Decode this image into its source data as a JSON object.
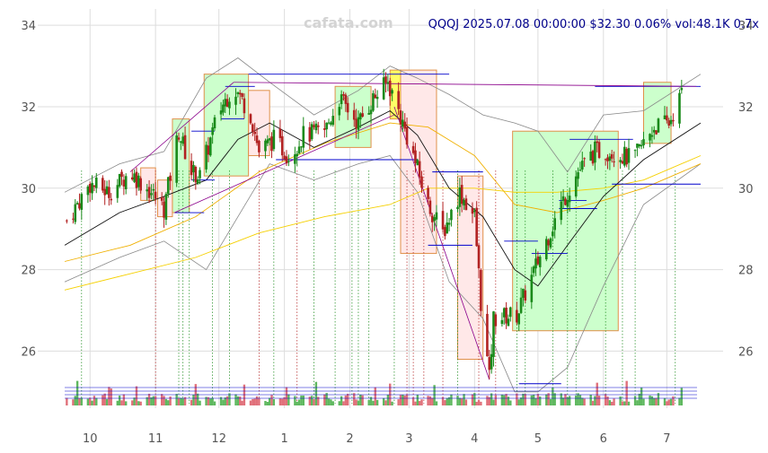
{
  "watermark": "cafata.com",
  "header": "QQQJ 2025.07.08 00:00:00 $32.30 0.06% vol:48.1K 0.7x",
  "colors": {
    "up": "#1a8a1a",
    "down": "#b22222",
    "ma_short": "#111111",
    "ma_mid": "#f0b000",
    "ma_long": "#f5d000",
    "band": "#888888",
    "green_box": "#ccffcc",
    "red_box": "#ffe8e8",
    "box_border": "#e0904a",
    "vol_up": "#5fb85f",
    "vol_down": "#e0707a",
    "level": "#0000cc",
    "trend": "#8b008b",
    "grid": "#dddddd"
  },
  "chart_data": {
    "type": "candlestick",
    "title": "QQQJ 2025.07.08 00:00:00 $32.30 0.06% vol:48.1K 0.7x",
    "x_ticks": [
      "10",
      "11",
      "12",
      "1",
      "2",
      "3",
      "4",
      "5",
      "6",
      "7"
    ],
    "y_ticks": [
      26,
      28,
      30,
      32,
      34
    ],
    "ylim": [
      24.6,
      34.4
    ],
    "x_range": [
      "2024-09-19",
      "2025-07-17"
    ],
    "grid": true,
    "anchors": [
      [
        "2024-09-20",
        29.2
      ],
      [
        "2024-10-01",
        30.1
      ],
      [
        "2024-10-10",
        29.9
      ],
      [
        "2024-10-20",
        30.4
      ],
      [
        "2024-10-30",
        29.9
      ],
      [
        "2024-11-05",
        29.5
      ],
      [
        "2024-11-12",
        31.4
      ],
      [
        "2024-11-18",
        30.4
      ],
      [
        "2024-11-22",
        30.3
      ],
      [
        "2024-12-01",
        31.9
      ],
      [
        "2024-12-08",
        32.5
      ],
      [
        "2024-12-16",
        31.8
      ],
      [
        "2024-12-20",
        30.9
      ],
      [
        "2024-12-27",
        31.2
      ],
      [
        "2025-01-03",
        30.8
      ],
      [
        "2025-01-10",
        31.3
      ],
      [
        "2025-01-20",
        31.4
      ],
      [
        "2025-01-27",
        32.2
      ],
      [
        "2025-02-05",
        31.6
      ],
      [
        "2025-02-12",
        32.2
      ],
      [
        "2025-02-19",
        32.6
      ],
      [
        "2025-02-24",
        31.9
      ],
      [
        "2025-03-03",
        30.8
      ],
      [
        "2025-03-10",
        29.6
      ],
      [
        "2025-03-17",
        28.9
      ],
      [
        "2025-03-25",
        29.9
      ],
      [
        "2025-04-01",
        29.3
      ],
      [
        "2025-04-04",
        27.2
      ],
      [
        "2025-04-08",
        25.3
      ],
      [
        "2025-04-10",
        26.8
      ],
      [
        "2025-04-21",
        26.9
      ],
      [
        "2025-05-01",
        28.2
      ],
      [
        "2025-05-12",
        29.6
      ],
      [
        "2025-05-20",
        30.4
      ],
      [
        "2025-05-28",
        30.9
      ],
      [
        "2025-06-05",
        30.9
      ],
      [
        "2025-06-15",
        30.7
      ],
      [
        "2025-06-25",
        31.5
      ],
      [
        "2025-07-02",
        31.6
      ],
      [
        "2025-07-08",
        32.3
      ]
    ],
    "ma_short": [
      [
        "2024-09-19",
        28.6
      ],
      [
        "2024-10-15",
        29.4
      ],
      [
        "2024-11-05",
        29.8
      ],
      [
        "2024-11-25",
        30.2
      ],
      [
        "2024-12-10",
        31.2
      ],
      [
        "2024-12-25",
        31.6
      ],
      [
        "2025-01-15",
        31.0
      ],
      [
        "2025-02-05",
        31.5
      ],
      [
        "2025-02-20",
        31.9
      ],
      [
        "2025-03-05",
        31.3
      ],
      [
        "2025-03-20",
        30.0
      ],
      [
        "2025-04-05",
        29.3
      ],
      [
        "2025-04-20",
        28.0
      ],
      [
        "2025-05-01",
        27.6
      ],
      [
        "2025-05-15",
        28.6
      ],
      [
        "2025-06-01",
        29.8
      ],
      [
        "2025-06-20",
        30.7
      ],
      [
        "2025-07-17",
        31.6
      ]
    ],
    "ma_mid": [
      [
        "2024-09-19",
        28.2
      ],
      [
        "2024-10-20",
        28.6
      ],
      [
        "2024-11-20",
        29.3
      ],
      [
        "2024-12-20",
        30.4
      ],
      [
        "2025-01-20",
        31.1
      ],
      [
        "2025-02-20",
        31.6
      ],
      [
        "2025-03-10",
        31.5
      ],
      [
        "2025-04-01",
        30.8
      ],
      [
        "2025-04-20",
        29.6
      ],
      [
        "2025-05-10",
        29.4
      ],
      [
        "2025-06-01",
        29.7
      ],
      [
        "2025-06-20",
        30.0
      ],
      [
        "2025-07-17",
        30.6
      ]
    ],
    "ma_long": [
      [
        "2024-09-19",
        27.5
      ],
      [
        "2024-10-20",
        27.9
      ],
      [
        "2024-11-20",
        28.3
      ],
      [
        "2024-12-20",
        28.9
      ],
      [
        "2025-01-20",
        29.3
      ],
      [
        "2025-02-20",
        29.6
      ],
      [
        "2025-03-10",
        30.0
      ],
      [
        "2025-04-01",
        30.0
      ],
      [
        "2025-04-20",
        29.9
      ],
      [
        "2025-05-10",
        29.9
      ],
      [
        "2025-06-01",
        30.0
      ],
      [
        "2025-06-20",
        30.2
      ],
      [
        "2025-07-17",
        30.8
      ]
    ],
    "band_upper": [
      [
        "2024-09-19",
        29.9
      ],
      [
        "2024-10-15",
        30.6
      ],
      [
        "2024-11-05",
        30.9
      ],
      [
        "2024-11-25",
        32.7
      ],
      [
        "2024-12-10",
        33.2
      ],
      [
        "2024-12-25",
        32.6
      ],
      [
        "2025-01-15",
        31.8
      ],
      [
        "2025-02-05",
        32.4
      ],
      [
        "2025-02-20",
        33.0
      ],
      [
        "2025-03-05",
        32.7
      ],
      [
        "2025-03-20",
        32.3
      ],
      [
        "2025-04-05",
        31.8
      ],
      [
        "2025-04-20",
        31.6
      ],
      [
        "2025-05-01",
        31.4
      ],
      [
        "2025-05-15",
        30.4
      ],
      [
        "2025-06-01",
        31.8
      ],
      [
        "2025-06-20",
        31.9
      ],
      [
        "2025-07-17",
        32.8
      ]
    ],
    "band_lower": [
      [
        "2024-09-19",
        27.7
      ],
      [
        "2024-10-15",
        28.3
      ],
      [
        "2024-11-05",
        28.7
      ],
      [
        "2024-11-25",
        28.0
      ],
      [
        "2024-12-10",
        29.3
      ],
      [
        "2024-12-25",
        30.6
      ],
      [
        "2025-01-15",
        30.2
      ],
      [
        "2025-02-05",
        30.6
      ],
      [
        "2025-02-20",
        30.8
      ],
      [
        "2025-03-05",
        29.9
      ],
      [
        "2025-03-20",
        27.7
      ],
      [
        "2025-04-05",
        26.8
      ],
      [
        "2025-04-20",
        25.0
      ],
      [
        "2025-05-01",
        25.0
      ],
      [
        "2025-05-15",
        25.6
      ],
      [
        "2025-06-01",
        27.6
      ],
      [
        "2025-06-20",
        29.6
      ],
      [
        "2025-07-17",
        30.6
      ]
    ],
    "boxes": [
      {
        "color": "red",
        "x0": "2024-10-25",
        "x1": "2024-11-01",
        "y0": 29.7,
        "y1": 30.5
      },
      {
        "color": "red",
        "x0": "2024-11-02",
        "x1": "2024-11-09",
        "y0": 29.3,
        "y1": 30.2
      },
      {
        "color": "green",
        "x0": "2024-11-09",
        "x1": "2024-11-17",
        "y0": 29.4,
        "y1": 31.7
      },
      {
        "color": "green",
        "x0": "2024-11-24",
        "x1": "2024-12-15",
        "y0": 30.3,
        "y1": 32.8
      },
      {
        "color": "red",
        "x0": "2024-12-15",
        "x1": "2024-12-25",
        "y0": 30.8,
        "y1": 32.4
      },
      {
        "color": "green",
        "x0": "2025-01-25",
        "x1": "2025-02-11",
        "y0": 31.0,
        "y1": 32.5
      },
      {
        "color": "yellow",
        "x0": "2025-02-20",
        "x1": "2025-02-25",
        "y0": 31.7,
        "y1": 32.9
      },
      {
        "color": "red",
        "x0": "2025-02-25",
        "x1": "2025-03-14",
        "y0": 28.4,
        "y1": 32.9
      },
      {
        "color": "red",
        "x0": "2025-03-24",
        "x1": "2025-04-05",
        "y0": 25.8,
        "y1": 30.3
      },
      {
        "color": "green",
        "x0": "2025-04-19",
        "x1": "2025-06-08",
        "y0": 26.5,
        "y1": 31.4
      },
      {
        "color": "green",
        "x0": "2025-06-20",
        "x1": "2025-07-03",
        "y0": 31.1,
        "y1": 32.6
      }
    ],
    "levels": [
      {
        "x0": "2024-11-10",
        "x1": "2024-11-24",
        "y": 29.4
      },
      {
        "x0": "2024-11-18",
        "x1": "2024-11-29",
        "y": 30.2
      },
      {
        "x0": "2024-11-18",
        "x1": "2024-11-29",
        "y": 31.4
      },
      {
        "x0": "2024-12-04",
        "x1": "2024-12-18",
        "y": 32.5
      },
      {
        "x0": "2024-12-02",
        "x1": "2024-12-13",
        "y": 31.7
      },
      {
        "x0": "2024-12-15",
        "x1": "2025-03-20",
        "y": 32.8
      },
      {
        "x0": "2024-12-28",
        "x1": "2025-03-05",
        "y": 30.7
      },
      {
        "x0": "2025-03-12",
        "x1": "2025-04-05",
        "y": 30.4
      },
      {
        "x0": "2025-03-10",
        "x1": "2025-03-31",
        "y": 28.6
      },
      {
        "x0": "2025-04-15",
        "x1": "2025-05-01",
        "y": 28.7
      },
      {
        "x0": "2025-04-22",
        "x1": "2025-05-12",
        "y": 25.2
      },
      {
        "x0": "2025-04-28",
        "x1": "2025-05-15",
        "y": 28.4
      },
      {
        "x0": "2025-05-11",
        "x1": "2025-05-24",
        "y": 29.7
      },
      {
        "x0": "2025-05-11",
        "x1": "2025-05-29",
        "y": 29.5
      },
      {
        "x0": "2025-05-16",
        "x1": "2025-06-15",
        "y": 31.2
      },
      {
        "x0": "2025-06-05",
        "x1": "2025-07-17",
        "y": 30.1
      },
      {
        "x0": "2025-05-28",
        "x1": "2025-07-17",
        "y": 32.5
      }
    ],
    "trendlines": [
      {
        "x0": "2024-10-20",
        "y0": 30.4,
        "x1": "2024-12-08",
        "y1": 32.6
      },
      {
        "x0": "2024-12-08",
        "y0": 32.6,
        "x1": "2025-07-15",
        "y1": 32.5
      },
      {
        "x0": "2024-11-10",
        "y0": 29.4,
        "x1": "2025-02-22",
        "y1": 31.8
      },
      {
        "x0": "2025-02-22",
        "y0": 32.0,
        "x1": "2025-04-08",
        "y1": 25.3
      }
    ],
    "signals": [
      {
        "date": "2024-09-27",
        "color": "green"
      },
      {
        "date": "2024-11-01",
        "color": "red"
      },
      {
        "date": "2024-11-12",
        "color": "green"
      },
      {
        "date": "2024-11-14",
        "color": "green"
      },
      {
        "date": "2024-11-17",
        "color": "green"
      },
      {
        "date": "2024-11-28",
        "color": "green"
      },
      {
        "date": "2024-12-06",
        "color": "green"
      },
      {
        "date": "2024-12-20",
        "color": "red"
      },
      {
        "date": "2024-12-27",
        "color": "green"
      },
      {
        "date": "2025-01-07",
        "color": "red"
      },
      {
        "date": "2025-01-15",
        "color": "green"
      },
      {
        "date": "2025-01-25",
        "color": "green"
      },
      {
        "date": "2025-02-02",
        "color": "green"
      },
      {
        "date": "2025-02-05",
        "color": "green"
      },
      {
        "date": "2025-02-10",
        "color": "green"
      },
      {
        "date": "2025-02-22",
        "color": "green"
      },
      {
        "date": "2025-02-28",
        "color": "red"
      },
      {
        "date": "2025-03-03",
        "color": "red"
      },
      {
        "date": "2025-03-08",
        "color": "red"
      },
      {
        "date": "2025-03-17",
        "color": "red"
      },
      {
        "date": "2025-03-24",
        "color": "green"
      },
      {
        "date": "2025-04-03",
        "color": "red"
      },
      {
        "date": "2025-04-11",
        "color": "red"
      },
      {
        "date": "2025-04-21",
        "color": "green"
      },
      {
        "date": "2025-04-25",
        "color": "green"
      },
      {
        "date": "2025-05-08",
        "color": "green"
      },
      {
        "date": "2025-05-15",
        "color": "green"
      },
      {
        "date": "2025-05-19",
        "color": "green"
      },
      {
        "date": "2025-06-02",
        "color": "green"
      },
      {
        "date": "2025-06-10",
        "color": "green"
      },
      {
        "date": "2025-06-16",
        "color": "green"
      },
      {
        "date": "2025-07-05",
        "color": "green"
      }
    ],
    "volume_ref_lines": 4
  }
}
